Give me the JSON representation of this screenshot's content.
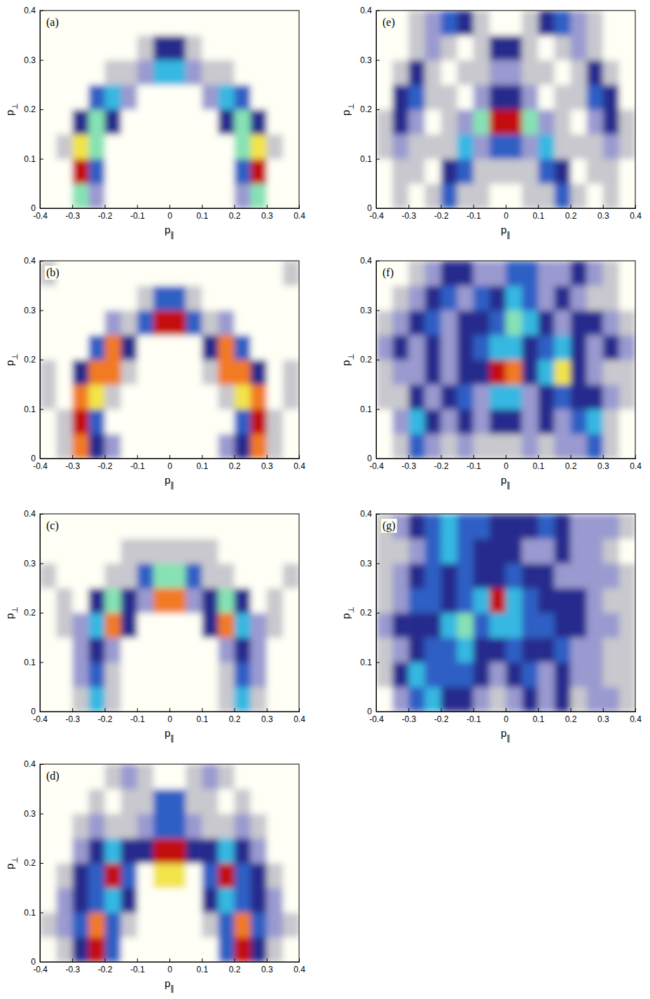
{
  "chart_data": [
    {
      "type": "heatmap",
      "title": "(a)",
      "x_label": "p∥",
      "y_label": "p⊥",
      "xlim": [
        -0.4,
        0.4
      ],
      "ylim": [
        0,
        0.4
      ],
      "xticks": [
        -0.4,
        -0.3,
        -0.2,
        -0.1,
        0,
        0.1,
        0.2,
        0.3,
        0.4
      ],
      "yticks": [
        0,
        0.1,
        0.2,
        0.3,
        0.4
      ],
      "x": [
        -0.375,
        -0.325,
        -0.275,
        -0.225,
        -0.175,
        -0.125,
        -0.075,
        -0.025,
        0.025,
        0.075,
        0.125,
        0.175,
        0.225,
        0.275,
        0.325,
        0.375
      ],
      "y": [
        0.025,
        0.075,
        0.125,
        0.175,
        0.225,
        0.275,
        0.325,
        0.375
      ],
      "z": [
        [
          0,
          0,
          6,
          2,
          0,
          0,
          0,
          0,
          0,
          0,
          0,
          0,
          2,
          6,
          0,
          0
        ],
        [
          0,
          0,
          9,
          4,
          0,
          0,
          0,
          0,
          0,
          0,
          0,
          0,
          4,
          9,
          0,
          0
        ],
        [
          0,
          1,
          7,
          6,
          0,
          0,
          0,
          0,
          0,
          0,
          0,
          0,
          6,
          7,
          1,
          0
        ],
        [
          0,
          0,
          3,
          6,
          3,
          0,
          0,
          0,
          0,
          0,
          0,
          3,
          6,
          3,
          0,
          0
        ],
        [
          0,
          0,
          0,
          4,
          5,
          2,
          0,
          0,
          0,
          0,
          2,
          5,
          4,
          0,
          0,
          0
        ],
        [
          0,
          0,
          0,
          0,
          1,
          1,
          2,
          5,
          5,
          2,
          1,
          1,
          0,
          0,
          0,
          0
        ],
        [
          0,
          0,
          0,
          0,
          0,
          0,
          1,
          3,
          3,
          1,
          0,
          0,
          0,
          0,
          0,
          0
        ],
        [
          0,
          0,
          0,
          0,
          0,
          0,
          0,
          0,
          0,
          0,
          0,
          0,
          0,
          0,
          0,
          0
        ]
      ]
    },
    {
      "type": "heatmap",
      "title": "(b)",
      "x_label": "p∥",
      "y_label": "p⊥",
      "xlim": [
        -0.4,
        0.4
      ],
      "ylim": [
        0,
        0.4
      ],
      "xticks": [
        -0.4,
        -0.3,
        -0.2,
        -0.1,
        0,
        0.1,
        0.2,
        0.3,
        0.4
      ],
      "yticks": [
        0,
        0.1,
        0.2,
        0.3,
        0.4
      ],
      "x": [
        -0.375,
        -0.325,
        -0.275,
        -0.225,
        -0.175,
        -0.125,
        -0.075,
        -0.025,
        0.025,
        0.075,
        0.125,
        0.175,
        0.225,
        0.275,
        0.325,
        0.375
      ],
      "y": [
        0.025,
        0.075,
        0.125,
        0.175,
        0.225,
        0.275,
        0.325,
        0.375
      ],
      "z": [
        [
          0,
          1,
          8,
          3,
          2,
          0,
          0,
          0,
          0,
          0,
          0,
          2,
          3,
          8,
          1,
          0
        ],
        [
          0,
          1,
          9,
          4,
          0,
          0,
          0,
          0,
          0,
          0,
          0,
          0,
          4,
          9,
          1,
          0
        ],
        [
          1,
          0,
          8,
          7,
          1,
          0,
          0,
          0,
          0,
          0,
          0,
          1,
          7,
          8,
          0,
          1
        ],
        [
          1,
          0,
          3,
          8,
          8,
          1,
          0,
          0,
          0,
          0,
          1,
          8,
          8,
          3,
          0,
          1
        ],
        [
          0,
          0,
          0,
          4,
          8,
          3,
          0,
          0,
          0,
          0,
          3,
          8,
          4,
          0,
          0,
          0
        ],
        [
          0,
          0,
          0,
          0,
          2,
          1,
          4,
          9,
          9,
          4,
          1,
          2,
          0,
          0,
          0,
          0
        ],
        [
          0,
          0,
          0,
          0,
          0,
          0,
          1,
          4,
          4,
          1,
          0,
          0,
          0,
          0,
          0,
          0
        ],
        [
          1,
          0,
          0,
          0,
          0,
          0,
          0,
          0,
          0,
          0,
          0,
          0,
          0,
          0,
          0,
          1
        ]
      ]
    },
    {
      "type": "heatmap",
      "title": "(c)",
      "x_label": "p∥",
      "y_label": "p⊥",
      "xlim": [
        -0.4,
        0.4
      ],
      "ylim": [
        0,
        0.4
      ],
      "xticks": [
        -0.4,
        -0.3,
        -0.2,
        -0.1,
        0,
        0.1,
        0.2,
        0.3,
        0.4
      ],
      "yticks": [
        0,
        0.1,
        0.2,
        0.3,
        0.4
      ],
      "x": [
        -0.375,
        -0.325,
        -0.275,
        -0.225,
        -0.175,
        -0.125,
        -0.075,
        -0.025,
        0.025,
        0.075,
        0.125,
        0.175,
        0.225,
        0.275,
        0.325,
        0.375
      ],
      "y": [
        0.025,
        0.075,
        0.125,
        0.175,
        0.225,
        0.275,
        0.325,
        0.375
      ],
      "z": [
        [
          0,
          0,
          1,
          5,
          1,
          0,
          0,
          0,
          0,
          0,
          0,
          1,
          5,
          1,
          0,
          0
        ],
        [
          0,
          0,
          2,
          4,
          1,
          0,
          0,
          0,
          0,
          0,
          0,
          1,
          4,
          2,
          0,
          0
        ],
        [
          0,
          0,
          2,
          3,
          2,
          0,
          0,
          0,
          0,
          0,
          0,
          2,
          3,
          2,
          0,
          0
        ],
        [
          0,
          1,
          2,
          5,
          8,
          3,
          0,
          0,
          0,
          0,
          3,
          8,
          5,
          2,
          1,
          0
        ],
        [
          0,
          1,
          0,
          3,
          6,
          3,
          2,
          8,
          8,
          2,
          3,
          6,
          3,
          0,
          1,
          0
        ],
        [
          1,
          0,
          0,
          0,
          1,
          1,
          4,
          6,
          6,
          4,
          1,
          1,
          0,
          0,
          0,
          1
        ],
        [
          0,
          0,
          0,
          0,
          0,
          1,
          1,
          1,
          1,
          1,
          1,
          0,
          0,
          0,
          0,
          0
        ],
        [
          0,
          0,
          0,
          0,
          0,
          0,
          0,
          0,
          0,
          0,
          0,
          0,
          0,
          0,
          0,
          0
        ]
      ]
    },
    {
      "type": "heatmap",
      "title": "(d)",
      "x_label": "p∥",
      "y_label": "p⊥",
      "xlim": [
        -0.4,
        0.4
      ],
      "ylim": [
        0,
        0.4
      ],
      "xticks": [
        -0.4,
        -0.3,
        -0.2,
        -0.1,
        0,
        0.1,
        0.2,
        0.3,
        0.4
      ],
      "yticks": [
        0,
        0.1,
        0.2,
        0.3,
        0.4
      ],
      "x": [
        -0.375,
        -0.325,
        -0.275,
        -0.225,
        -0.175,
        -0.125,
        -0.075,
        -0.025,
        0.025,
        0.075,
        0.125,
        0.175,
        0.225,
        0.275,
        0.325,
        0.375
      ],
      "y": [
        0.025,
        0.075,
        0.125,
        0.175,
        0.225,
        0.275,
        0.325,
        0.375
      ],
      "z": [
        [
          0,
          1,
          3,
          9,
          4,
          0,
          0,
          0,
          0,
          0,
          0,
          4,
          9,
          3,
          1,
          0
        ],
        [
          1,
          2,
          4,
          8,
          4,
          1,
          0,
          0,
          0,
          0,
          1,
          4,
          8,
          4,
          2,
          1
        ],
        [
          0,
          2,
          3,
          4,
          5,
          3,
          0,
          0,
          0,
          0,
          3,
          5,
          4,
          3,
          2,
          0
        ],
        [
          0,
          1,
          3,
          4,
          9,
          4,
          0,
          7,
          7,
          0,
          4,
          9,
          4,
          3,
          1,
          0
        ],
        [
          0,
          0,
          2,
          3,
          5,
          3,
          3,
          9,
          9,
          3,
          3,
          5,
          3,
          2,
          0,
          0
        ],
        [
          0,
          0,
          1,
          2,
          1,
          1,
          2,
          4,
          4,
          2,
          1,
          1,
          2,
          1,
          0,
          0
        ],
        [
          0,
          0,
          0,
          1,
          0,
          1,
          1,
          4,
          4,
          1,
          1,
          0,
          1,
          0,
          0,
          0
        ],
        [
          0,
          0,
          0,
          0,
          1,
          2,
          1,
          0,
          0,
          1,
          2,
          1,
          0,
          0,
          0,
          0
        ]
      ]
    },
    {
      "type": "heatmap",
      "title": "(e)",
      "x_label": "p∥",
      "y_label": "p⊥",
      "xlim": [
        -0.4,
        0.4
      ],
      "ylim": [
        0,
        0.4
      ],
      "xticks": [
        -0.4,
        -0.3,
        -0.2,
        -0.1,
        0,
        0.1,
        0.2,
        0.3,
        0.4
      ],
      "yticks": [
        0,
        0.1,
        0.2,
        0.3,
        0.4
      ],
      "x": [
        -0.375,
        -0.325,
        -0.275,
        -0.225,
        -0.175,
        -0.125,
        -0.075,
        -0.025,
        0.025,
        0.075,
        0.125,
        0.175,
        0.225,
        0.275,
        0.325,
        0.375
      ],
      "y": [
        0.025,
        0.075,
        0.125,
        0.175,
        0.225,
        0.275,
        0.325,
        0.375
      ],
      "z": [
        [
          0,
          1,
          0,
          1,
          4,
          1,
          1,
          0,
          0,
          1,
          1,
          4,
          1,
          0,
          1,
          0
        ],
        [
          0,
          1,
          1,
          0,
          3,
          4,
          1,
          1,
          1,
          1,
          4,
          3,
          0,
          1,
          1,
          0
        ],
        [
          1,
          2,
          1,
          1,
          1,
          5,
          2,
          4,
          4,
          2,
          5,
          1,
          1,
          1,
          2,
          1
        ],
        [
          1,
          3,
          2,
          0,
          1,
          2,
          6,
          9,
          9,
          6,
          2,
          1,
          0,
          2,
          3,
          1
        ],
        [
          0,
          3,
          4,
          1,
          1,
          0,
          2,
          3,
          3,
          2,
          0,
          1,
          1,
          4,
          3,
          0
        ],
        [
          0,
          1,
          3,
          1,
          0,
          1,
          1,
          2,
          2,
          1,
          1,
          0,
          1,
          3,
          1,
          0
        ],
        [
          0,
          0,
          1,
          2,
          1,
          0,
          1,
          3,
          3,
          1,
          0,
          1,
          2,
          1,
          0,
          0
        ],
        [
          0,
          0,
          1,
          2,
          4,
          3,
          1,
          0,
          0,
          1,
          3,
          4,
          2,
          1,
          0,
          0
        ]
      ]
    },
    {
      "type": "heatmap",
      "title": "(f)",
      "x_label": "p∥",
      "y_label": "p⊥",
      "xlim": [
        -0.4,
        0.4
      ],
      "ylim": [
        0,
        0.4
      ],
      "xticks": [
        -0.4,
        -0.3,
        -0.2,
        -0.1,
        0,
        0.1,
        0.2,
        0.3,
        0.4
      ],
      "yticks": [
        0,
        0.1,
        0.2,
        0.3,
        0.4
      ],
      "x": [
        -0.375,
        -0.325,
        -0.275,
        -0.225,
        -0.175,
        -0.125,
        -0.075,
        -0.025,
        0.025,
        0.075,
        0.125,
        0.175,
        0.225,
        0.275,
        0.325,
        0.375
      ],
      "y": [
        0.025,
        0.075,
        0.125,
        0.175,
        0.225,
        0.275,
        0.325,
        0.375
      ],
      "z": [
        [
          0,
          1,
          4,
          2,
          1,
          2,
          1,
          1,
          1,
          2,
          1,
          2,
          2,
          4,
          1,
          0
        ],
        [
          0,
          2,
          5,
          3,
          2,
          3,
          2,
          3,
          3,
          2,
          3,
          2,
          4,
          5,
          1,
          0
        ],
        [
          1,
          1,
          3,
          2,
          3,
          4,
          2,
          5,
          5,
          2,
          3,
          4,
          3,
          3,
          2,
          1
        ],
        [
          1,
          2,
          2,
          3,
          2,
          3,
          3,
          9,
          8,
          3,
          5,
          7,
          3,
          2,
          1,
          1
        ],
        [
          2,
          3,
          2,
          3,
          2,
          3,
          4,
          5,
          5,
          3,
          4,
          5,
          3,
          2,
          3,
          2
        ],
        [
          1,
          2,
          3,
          4,
          2,
          3,
          3,
          4,
          6,
          5,
          3,
          2,
          3,
          3,
          2,
          1
        ],
        [
          0,
          1,
          2,
          3,
          4,
          2,
          4,
          3,
          5,
          4,
          2,
          3,
          2,
          1,
          1,
          0
        ],
        [
          0,
          0,
          1,
          2,
          3,
          3,
          2,
          2,
          4,
          4,
          2,
          2,
          3,
          2,
          1,
          0
        ]
      ]
    },
    {
      "type": "heatmap",
      "title": "(g)",
      "x_label": "p∥",
      "y_label": "p⊥",
      "xlim": [
        -0.4,
        0.4
      ],
      "ylim": [
        0,
        0.4
      ],
      "xticks": [
        -0.4,
        -0.3,
        -0.2,
        -0.1,
        0,
        0.1,
        0.2,
        0.3,
        0.4
      ],
      "yticks": [
        0,
        0.1,
        0.2,
        0.3,
        0.4
      ],
      "x": [
        -0.375,
        -0.325,
        -0.275,
        -0.225,
        -0.175,
        -0.125,
        -0.075,
        -0.025,
        0.025,
        0.075,
        0.125,
        0.175,
        0.225,
        0.275,
        0.325,
        0.375
      ],
      "y": [
        0.025,
        0.075,
        0.125,
        0.175,
        0.225,
        0.275,
        0.325,
        0.375
      ],
      "z": [
        [
          0,
          2,
          4,
          5,
          3,
          3,
          2,
          1,
          2,
          3,
          2,
          3,
          1,
          2,
          2,
          1
        ],
        [
          1,
          3,
          5,
          4,
          4,
          4,
          3,
          2,
          3,
          4,
          2,
          3,
          2,
          2,
          1,
          1
        ],
        [
          1,
          2,
          3,
          4,
          4,
          5,
          3,
          3,
          4,
          3,
          3,
          4,
          2,
          2,
          1,
          1
        ],
        [
          2,
          3,
          3,
          3,
          5,
          6,
          4,
          5,
          5,
          4,
          4,
          3,
          3,
          2,
          2,
          1
        ],
        [
          1,
          2,
          4,
          4,
          3,
          4,
          5,
          9,
          5,
          4,
          3,
          3,
          3,
          2,
          1,
          1
        ],
        [
          1,
          2,
          3,
          4,
          3,
          4,
          3,
          3,
          4,
          3,
          3,
          2,
          2,
          2,
          2,
          1
        ],
        [
          1,
          1,
          2,
          4,
          5,
          4,
          3,
          3,
          3,
          2,
          2,
          3,
          2,
          2,
          1,
          0
        ],
        [
          1,
          2,
          3,
          4,
          5,
          4,
          4,
          3,
          3,
          3,
          4,
          3,
          2,
          2,
          2,
          1
        ]
      ]
    }
  ]
}
